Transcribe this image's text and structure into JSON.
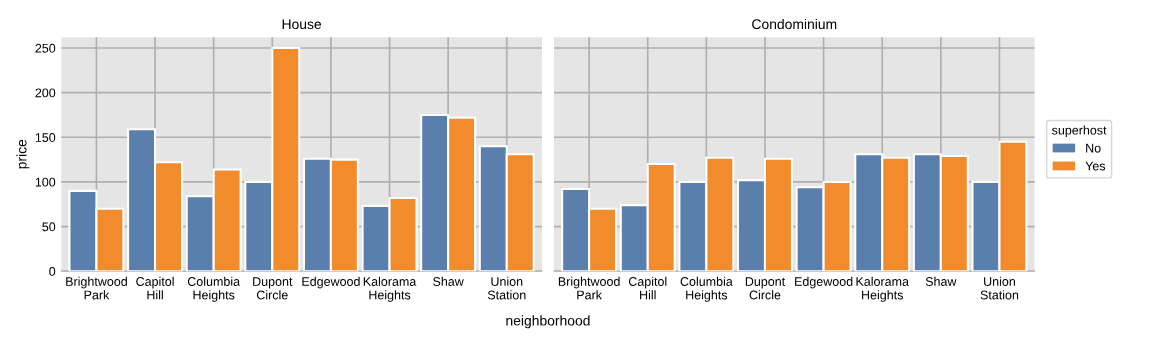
{
  "chart_data": [
    {
      "type": "bar",
      "title": "House",
      "ylabel": "price",
      "xlabel": "neighborhood",
      "legend_title": "superhost",
      "legend": "right",
      "categories": [
        "Brightwood\nPark",
        "Capitol\nHill",
        "Columbia\nHeights",
        "Dupont\nCircle",
        "Edgewood",
        "Kalorama\nHeights",
        "Shaw",
        "Union\nStation"
      ],
      "series": [
        {
          "name": "No",
          "color": "#5b7fad",
          "values": [
            90,
            159,
            84,
            100,
            126,
            73,
            175,
            140
          ]
        },
        {
          "name": "Yes",
          "color": "#f28b2c",
          "values": [
            70,
            122,
            114,
            250,
            125,
            82,
            172,
            131
          ]
        }
      ],
      "ylim": [
        0,
        262
      ],
      "yticks": [
        0,
        50,
        100,
        150,
        200,
        250
      ],
      "grid": true
    },
    {
      "type": "bar",
      "title": "Condominium",
      "categories": [
        "Brightwood\nPark",
        "Capitol\nHill",
        "Columbia\nHeights",
        "Dupont\nCircle",
        "Edgewood",
        "Kalorama\nHeights",
        "Shaw",
        "Union\nStation"
      ],
      "series": [
        {
          "color": "#5b7fad",
          "values": [
            92,
            74,
            100,
            102,
            94,
            131,
            131,
            100
          ]
        },
        {
          "color": "#f28b2c",
          "values": [
            70,
            120,
            127,
            126,
            100,
            127,
            129,
            145
          ]
        }
      ],
      "ylim": [
        0,
        262
      ],
      "yticks": [
        0,
        50,
        100,
        150,
        200,
        250
      ],
      "grid": true,
      "tick_labels": "x"
    }
  ]
}
